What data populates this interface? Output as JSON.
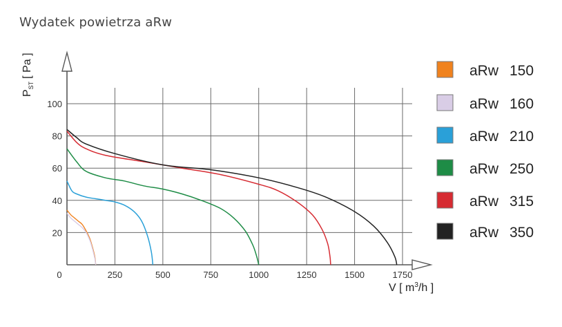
{
  "page": {
    "title": "Wydatek powietrza aRw"
  },
  "chart_data": {
    "type": "line",
    "title": "Wydatek powietrza aRw",
    "xlabel": "V [ m³/h ]",
    "ylabel": "P_ST [ Pa ]",
    "ylabel_main": "P",
    "ylabel_sub": "ST",
    "ylabel_unit": "[ Pa ]",
    "xlabel_main": "V [ m",
    "xlabel_sup": "3",
    "xlabel_end": "/h ]",
    "xlim": [
      0,
      1800
    ],
    "ylim": [
      0,
      100
    ],
    "x_ticks": [
      0,
      250,
      500,
      750,
      1000,
      1250,
      1500,
      1750
    ],
    "y_ticks": [
      20,
      40,
      60,
      80,
      100
    ],
    "grid": true,
    "legend_position": "right",
    "series": [
      {
        "name": "aRw 150",
        "label_model": "aRw",
        "label_size": "150",
        "color": "#f0821e",
        "points": [
          [
            0,
            34
          ],
          [
            20,
            31
          ],
          [
            40,
            29
          ],
          [
            60,
            27
          ],
          [
            80,
            25
          ],
          [
            100,
            21
          ],
          [
            120,
            16
          ],
          [
            135,
            10
          ],
          [
            145,
            5
          ],
          [
            150,
            0
          ]
        ]
      },
      {
        "name": "aRw 160",
        "label_model": "aRw",
        "label_size": "160",
        "color": "#d9cde6",
        "points": [
          [
            0,
            32
          ],
          [
            20,
            29
          ],
          [
            40,
            27
          ],
          [
            60,
            25
          ],
          [
            80,
            23
          ],
          [
            100,
            20
          ],
          [
            120,
            15
          ],
          [
            135,
            9
          ],
          [
            145,
            4
          ],
          [
            150,
            0
          ]
        ]
      },
      {
        "name": "aRw 210",
        "label_model": "aRw",
        "label_size": "210",
        "color": "#2aa0d8",
        "points": [
          [
            0,
            52
          ],
          [
            25,
            46
          ],
          [
            50,
            44
          ],
          [
            100,
            42
          ],
          [
            150,
            41
          ],
          [
            200,
            40
          ],
          [
            250,
            39
          ],
          [
            300,
            37
          ],
          [
            350,
            33
          ],
          [
            390,
            27
          ],
          [
            420,
            18
          ],
          [
            440,
            8
          ],
          [
            448,
            0
          ]
        ]
      },
      {
        "name": "aRw 250",
        "label_model": "aRw",
        "label_size": "250",
        "color": "#1e8c46",
        "points": [
          [
            0,
            72
          ],
          [
            50,
            64
          ],
          [
            100,
            58
          ],
          [
            200,
            54
          ],
          [
            300,
            52
          ],
          [
            400,
            49
          ],
          [
            500,
            47
          ],
          [
            600,
            44
          ],
          [
            700,
            40
          ],
          [
            800,
            35
          ],
          [
            870,
            29
          ],
          [
            930,
            21
          ],
          [
            970,
            12
          ],
          [
            990,
            5
          ],
          [
            1000,
            0
          ]
        ]
      },
      {
        "name": "aRw 315",
        "label_model": "aRw",
        "label_size": "315",
        "color": "#d62b32",
        "points": [
          [
            0,
            83
          ],
          [
            50,
            76
          ],
          [
            100,
            72
          ],
          [
            200,
            68
          ],
          [
            400,
            64
          ],
          [
            600,
            60
          ],
          [
            800,
            56
          ],
          [
            1000,
            50
          ],
          [
            1100,
            46
          ],
          [
            1200,
            39
          ],
          [
            1280,
            31
          ],
          [
            1330,
            22
          ],
          [
            1360,
            13
          ],
          [
            1372,
            5
          ],
          [
            1375,
            0
          ]
        ]
      },
      {
        "name": "aRw 350",
        "label_model": "aRw",
        "label_size": "350",
        "color": "#222222",
        "points": [
          [
            0,
            84
          ],
          [
            50,
            79
          ],
          [
            100,
            75
          ],
          [
            250,
            69
          ],
          [
            500,
            62
          ],
          [
            750,
            59
          ],
          [
            1000,
            54
          ],
          [
            1200,
            48
          ],
          [
            1350,
            42
          ],
          [
            1500,
            33
          ],
          [
            1600,
            24
          ],
          [
            1670,
            14
          ],
          [
            1710,
            5
          ],
          [
            1720,
            0
          ]
        ]
      }
    ]
  }
}
